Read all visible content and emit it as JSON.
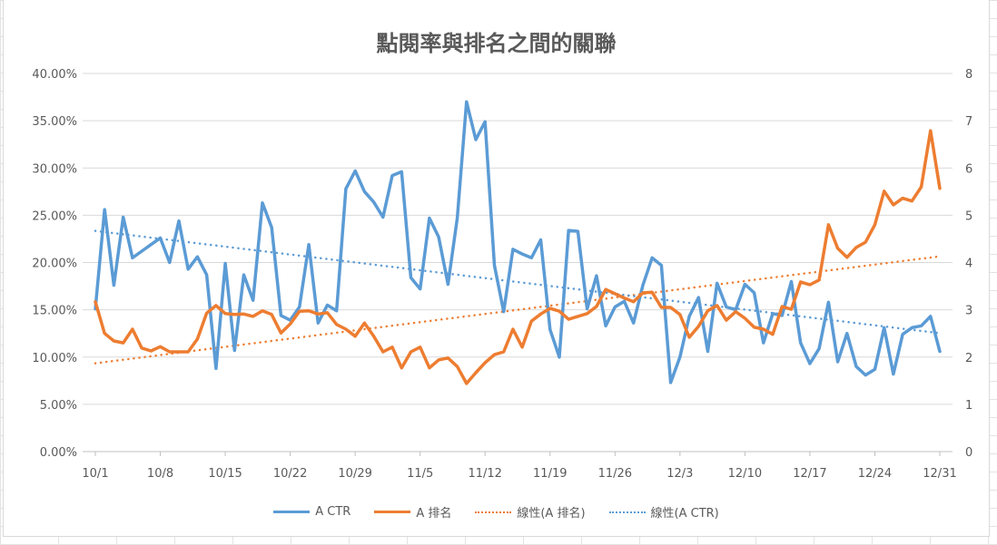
{
  "chart_data": {
    "type": "line",
    "title": "點閱率與排名之間的關聯",
    "x_tick_labels": [
      "10/1",
      "10/8",
      "10/15",
      "10/22",
      "10/29",
      "11/5",
      "11/12",
      "11/19",
      "11/26",
      "12/3",
      "12/10",
      "12/17",
      "12/24",
      "12/31"
    ],
    "x": [
      "10/1",
      "10/2",
      "10/3",
      "10/4",
      "10/5",
      "10/6",
      "10/7",
      "10/8",
      "10/9",
      "10/10",
      "10/11",
      "10/12",
      "10/13",
      "10/14",
      "10/15",
      "10/16",
      "10/17",
      "10/18",
      "10/19",
      "10/20",
      "10/21",
      "10/22",
      "10/23",
      "10/24",
      "10/25",
      "10/26",
      "10/27",
      "10/28",
      "10/29",
      "10/30",
      "10/31",
      "11/1",
      "11/2",
      "11/3",
      "11/4",
      "11/5",
      "11/6",
      "11/7",
      "11/8",
      "11/9",
      "11/10",
      "11/11",
      "11/12",
      "11/13",
      "11/14",
      "11/15",
      "11/16",
      "11/17",
      "11/18",
      "11/19",
      "11/20",
      "11/21",
      "11/22",
      "11/23",
      "11/24",
      "11/25",
      "11/26",
      "11/27",
      "11/28",
      "11/29",
      "11/30",
      "12/1",
      "12/2",
      "12/3",
      "12/4",
      "12/5",
      "12/6",
      "12/7",
      "12/8",
      "12/9",
      "12/10",
      "12/11",
      "12/12",
      "12/13",
      "12/14",
      "12/15",
      "12/16",
      "12/17",
      "12/18",
      "12/19",
      "12/20",
      "12/21",
      "12/22",
      "12/23",
      "12/24",
      "12/25",
      "12/26",
      "12/27",
      "12/28",
      "12/29",
      "12/30",
      "12/31"
    ],
    "y_left": {
      "min": 0,
      "max": 40,
      "step": 5,
      "tick_labels": [
        "0.00%",
        "5.00%",
        "10.00%",
        "15.00%",
        "20.00%",
        "25.00%",
        "30.00%",
        "35.00%",
        "40.00%"
      ]
    },
    "y_right": {
      "min": 0,
      "max": 8,
      "step": 1,
      "tick_labels": [
        "0",
        "1",
        "2",
        "3",
        "4",
        "5",
        "6",
        "7",
        "8"
      ]
    },
    "grid": true,
    "legend_position": "bottom",
    "series": [
      {
        "name": "A CTR",
        "axis": "left",
        "unit": "%",
        "color": "#5B9BD5",
        "values": [
          15.1,
          25.6,
          17.6,
          24.8,
          20.5,
          21.2,
          21.9,
          22.6,
          20.0,
          24.4,
          19.3,
          20.6,
          18.7,
          8.8,
          19.9,
          10.7,
          18.7,
          16.0,
          26.3,
          23.7,
          14.4,
          13.9,
          15.3,
          21.9,
          13.6,
          15.5,
          14.9,
          27.8,
          29.7,
          27.5,
          26.4,
          24.8,
          29.2,
          29.6,
          18.4,
          17.2,
          24.7,
          22.7,
          17.7,
          24.7,
          37.0,
          33.0,
          34.9,
          19.7,
          14.8,
          21.4,
          20.9,
          20.5,
          22.4,
          12.9,
          10.0,
          23.4,
          23.3,
          15.1,
          18.6,
          13.3,
          15.3,
          15.9,
          13.6,
          17.6,
          20.5,
          19.7,
          7.3,
          10.0,
          14.3,
          16.3,
          10.6,
          17.8,
          15.3,
          15.0,
          17.7,
          16.8,
          11.5,
          14.6,
          14.4,
          18.0,
          11.5,
          9.3,
          10.9,
          15.8,
          9.5,
          12.5,
          9.0,
          8.1,
          8.7,
          13.1,
          8.2,
          12.4,
          13.1,
          13.3,
          14.3,
          10.6
        ]
      },
      {
        "name": "A 排名",
        "axis": "right",
        "color": "#ED7D31",
        "values": [
          3.17,
          2.5,
          2.34,
          2.3,
          2.59,
          2.19,
          2.13,
          2.22,
          2.11,
          2.11,
          2.11,
          2.38,
          2.93,
          3.09,
          2.92,
          2.9,
          2.91,
          2.86,
          2.98,
          2.9,
          2.51,
          2.7,
          2.97,
          2.98,
          2.91,
          2.94,
          2.69,
          2.59,
          2.44,
          2.72,
          2.44,
          2.11,
          2.21,
          1.77,
          2.11,
          2.21,
          1.77,
          1.94,
          1.98,
          1.8,
          1.44,
          1.67,
          1.88,
          2.05,
          2.11,
          2.59,
          2.21,
          2.76,
          2.91,
          3.03,
          2.97,
          2.8,
          2.86,
          2.92,
          3.07,
          3.43,
          3.34,
          3.25,
          3.17,
          3.36,
          3.37,
          3.05,
          3.05,
          2.9,
          2.42,
          2.65,
          2.98,
          3.09,
          2.78,
          2.96,
          2.82,
          2.63,
          2.59,
          2.48,
          3.07,
          3.01,
          3.59,
          3.53,
          3.63,
          4.8,
          4.3,
          4.11,
          4.32,
          4.43,
          4.8,
          5.51,
          5.22,
          5.36,
          5.3,
          5.6,
          6.79,
          5.57
        ]
      }
    ],
    "trendlines": [
      {
        "name": "線性(A 排名)",
        "of": "A 排名",
        "type": "linear",
        "color": "#ED7D31"
      },
      {
        "name": "線性(A CTR)",
        "of": "A CTR",
        "type": "linear",
        "color": "#5B9BD5"
      }
    ]
  }
}
